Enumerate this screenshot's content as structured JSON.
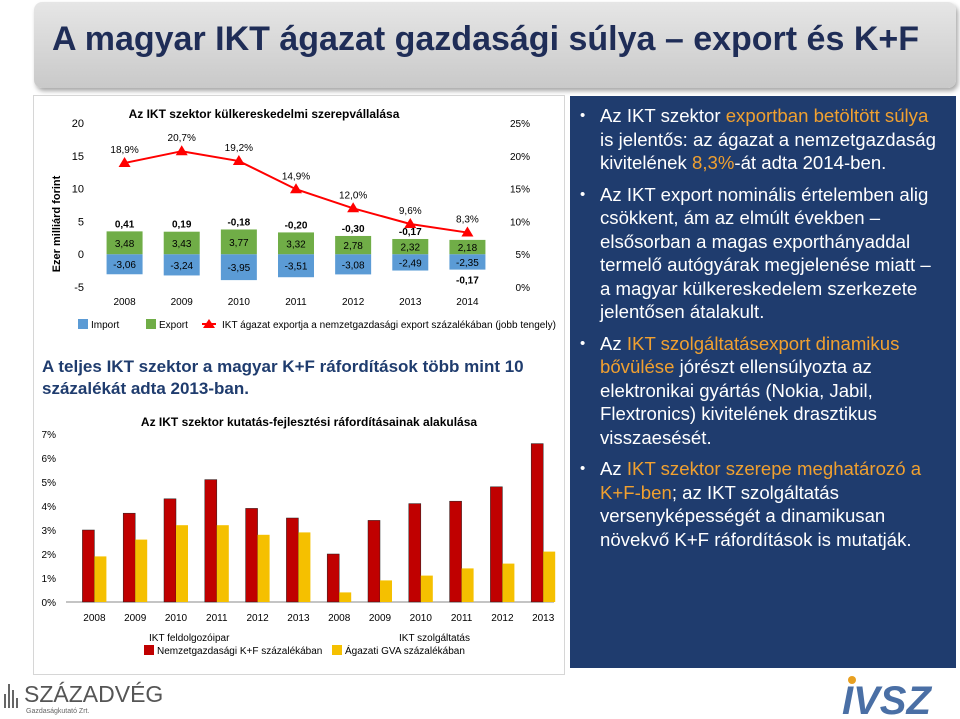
{
  "slide": {
    "title": "A magyar IKT ágazat gazdasági súlya – export és K+F",
    "mid_heading": "A teljes IKT szektor a magyar K+F ráfordítások több mint 10 százalékát adta 2013-ban."
  },
  "bullets": [
    {
      "parts": [
        {
          "text": "Az IKT szektor ",
          "hl": false
        },
        {
          "text": "exportban betöltött súlya",
          "hl": true
        },
        {
          "text": " is jelentős: az ágazat a nemzetgazdaság kivitelének ",
          "hl": false
        },
        {
          "text": "8,3%",
          "hl": true
        },
        {
          "text": "-át adta 2014-ben.",
          "hl": false
        }
      ]
    },
    {
      "parts": [
        {
          "text": "Az IKT export nominális értelemben alig csökkent, ám az elmúlt években – elsősorban a magas exporthányaddal termelő autógyárak megjelenése miatt – a magyar külkereskedelem szerkezete jelentősen átalakult.",
          "hl": false
        }
      ]
    },
    {
      "parts": [
        {
          "text": "Az ",
          "hl": false
        },
        {
          "text": "IKT szolgáltatásexport dinamikus bővülése",
          "hl": true
        },
        {
          "text": " jórészt ellensúlyozta az elektronikai gyártás (Nokia, Jabil, Flextronics) kivitelének drasztikus visszaesését.",
          "hl": false
        }
      ]
    },
    {
      "parts": [
        {
          "text": "Az ",
          "hl": false
        },
        {
          "text": "IKT szektor szerepe meghatározó a K+F-ben",
          "hl": true
        },
        {
          "text": "; az IKT szolgáltatás versenyképességét a dinamikusan növekvő K+F ráfordítások is mutatják.",
          "hl": false
        }
      ]
    }
  ],
  "colors": {
    "import": "#5b9bd5",
    "export": "#70ad47",
    "share_line": "#ff0000",
    "rd_ikt": "#c00000",
    "rd_gva": "#f5c000",
    "panel_bg": "#1f3c6e",
    "highlight": "#f0a030",
    "title": "#1f2d57"
  },
  "logos": {
    "left": "SZÁZADVÉG",
    "left_sub": "Gazdaságkutató Zrt.",
    "right": "IVSZ"
  },
  "chart_data": [
    {
      "type": "bar",
      "title": "Az IKT szektor külkereskedelmi szerepvállalása",
      "ylabel": "Ezer milliárd forint",
      "ylim": [
        -5,
        20
      ],
      "y2lim": [
        0,
        0.25
      ],
      "yticks": [
        "20",
        "15",
        "10",
        "5",
        "0",
        "-5"
      ],
      "y2ticks": [
        "25%",
        "20%",
        "15%",
        "10%",
        "5%",
        "0%"
      ],
      "categories": [
        "2008",
        "2009",
        "2010",
        "2011",
        "2012",
        "2013",
        "2014"
      ],
      "series": [
        {
          "name": "Import",
          "values": [
            -3.06,
            -3.24,
            -3.95,
            -3.51,
            -3.08,
            -2.49,
            -2.35
          ],
          "labels": [
            "-3,06",
            "-3,24",
            "-3,95",
            "-3,51",
            "-3,08",
            "-2,49",
            "-2,35"
          ]
        },
        {
          "name": "Export",
          "values": [
            3.48,
            3.43,
            3.77,
            3.32,
            2.78,
            2.32,
            2.18
          ],
          "labels": [
            "3,48",
            "3,43",
            "3,77",
            "3,32",
            "2,78",
            "2,32",
            "2,18"
          ]
        },
        {
          "name": "IKT ágazat exportja a nemzetgazdasági export százalékában (jobb tengely)",
          "axis": "right",
          "values": [
            0.189,
            0.207,
            0.192,
            0.149,
            0.12,
            0.096,
            0.083
          ],
          "labels": [
            "18,9%",
            "20,7%",
            "19,2%",
            "14,9%",
            "12,0%",
            "9,6%",
            "8,3%"
          ]
        }
      ],
      "balance_labels": [
        "0,41",
        "0,19",
        "-0,18",
        "-0,20",
        "-0,30",
        "-0,17",
        "-0,17"
      ],
      "legend": "bottom"
    },
    {
      "type": "bar",
      "title": "Az IKT szektor kutatás-fejlesztési ráfordításainak alakulása",
      "ylim": [
        0,
        0.07
      ],
      "yticks": [
        "7%",
        "6%",
        "5%",
        "4%",
        "3%",
        "2%",
        "1%",
        "0%"
      ],
      "groups": [
        {
          "name": "IKT feldolgozóipar",
          "categories": [
            "2008",
            "2009",
            "2010",
            "2011",
            "2012",
            "2013"
          ],
          "series": [
            {
              "name": "Nemzetgazdasági K+F százalékában",
              "values": [
                0.03,
                0.037,
                0.043,
                0.051,
                0.039,
                0.035
              ]
            },
            {
              "name": "Ágazati GVA százalékában",
              "values": [
                0.019,
                0.026,
                0.032,
                0.032,
                0.028,
                0.029
              ]
            }
          ]
        },
        {
          "name": "IKT szolgáltatás",
          "categories": [
            "2008",
            "2009",
            "2010",
            "2011",
            "2012",
            "2013"
          ],
          "series": [
            {
              "name": "Nemzetgazdasági K+F százalékában",
              "values": [
                0.02,
                0.034,
                0.041,
                0.042,
                0.048,
                0.066
              ]
            },
            {
              "name": "Ágazati GVA százalékában",
              "values": [
                0.004,
                0.009,
                0.011,
                0.014,
                0.016,
                0.021
              ]
            }
          ]
        }
      ],
      "legend": "bottom"
    }
  ]
}
